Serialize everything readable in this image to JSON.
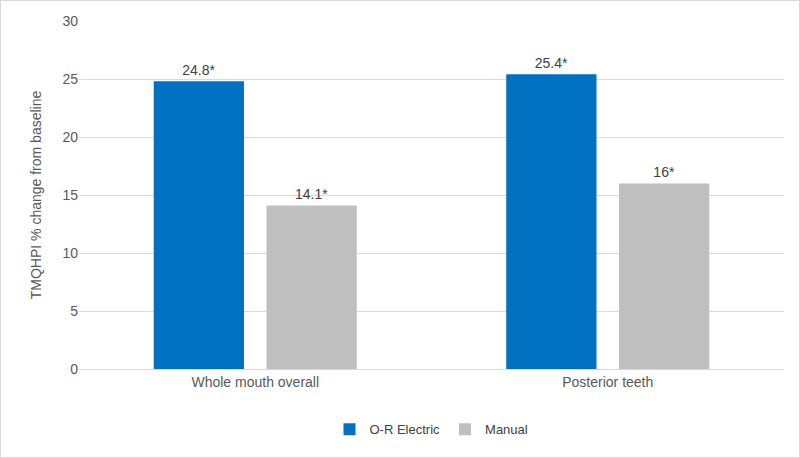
{
  "chart_data": {
    "type": "bar",
    "categories": [
      "Whole mouth overall",
      "Posterior teeth"
    ],
    "series": [
      {
        "name": "O-R Electric",
        "color": "#0070c0",
        "values": [
          24.8,
          25.4
        ],
        "value_labels": [
          "24.8*",
          "25.4*"
        ]
      },
      {
        "name": "Manual",
        "color": "#bfbfbf",
        "values": [
          14.1,
          16
        ],
        "value_labels": [
          "14.1*",
          "16*"
        ]
      }
    ],
    "y_label": "TMQHPI % change from baseline",
    "ylim": [
      0,
      30
    ],
    "yticks": [
      0,
      5,
      10,
      15,
      20,
      25,
      30
    ],
    "grid": true,
    "data_labels": true,
    "legend": "bottom"
  }
}
